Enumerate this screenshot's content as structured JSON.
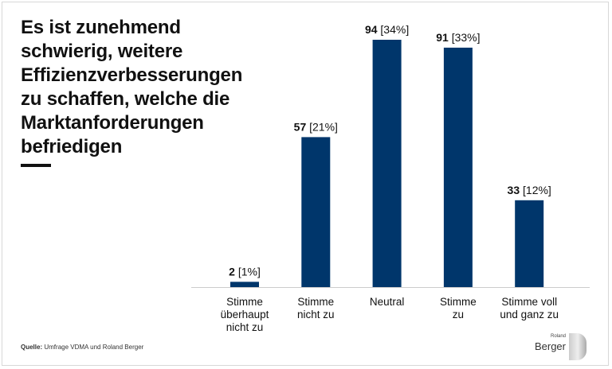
{
  "title": "Es ist zunehmend schwierig, weitere Effizienzverbesserungen zu schaffen, welche die Marktanforderungen befriedigen",
  "source_label": "Quelle:",
  "source_text": "Umfrage VDMA und Roland Berger",
  "logo": {
    "top": "Roland",
    "main": "Berger"
  },
  "colors": {
    "bar": "#00366b",
    "axis": "#cccccc"
  },
  "chart_data": {
    "type": "bar",
    "categories": [
      [
        "Stimme",
        "überhaupt",
        "nicht zu"
      ],
      [
        "Stimme",
        "nicht zu"
      ],
      [
        "Neutral"
      ],
      [
        "Stimme",
        "zu"
      ],
      [
        "Stimme voll",
        "und ganz zu"
      ]
    ],
    "values": [
      2,
      57,
      94,
      91,
      33
    ],
    "percent_labels": [
      "[1%]",
      "[21%]",
      "[34%]",
      "[33%]",
      "[12%]"
    ],
    "ylim": [
      0,
      94
    ],
    "grid": false,
    "legend": "none"
  }
}
